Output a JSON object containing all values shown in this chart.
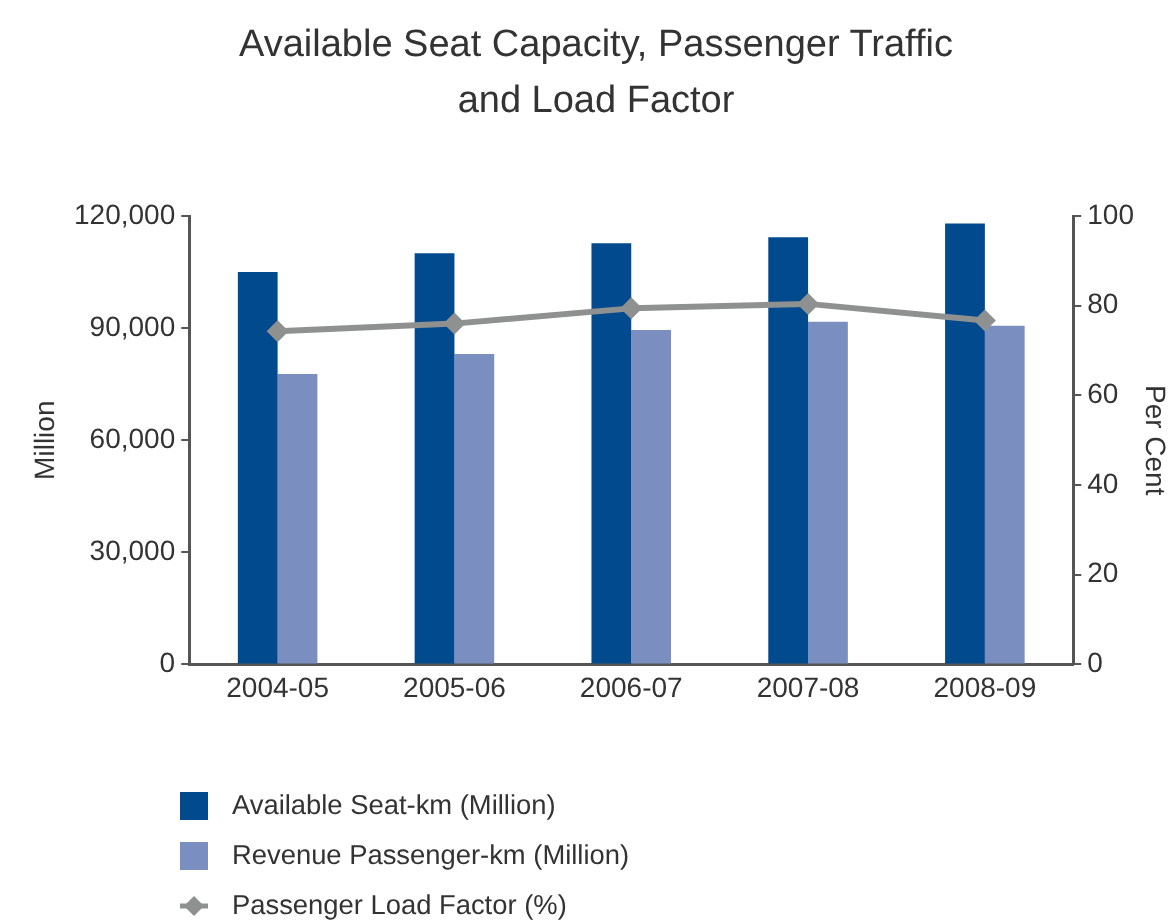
{
  "chart_data": {
    "type": "bar",
    "title": "Available Seat Capacity, Passenger Traffic and Load Factor",
    "categories": [
      "2004-05",
      "2005-06",
      "2006-07",
      "2007-08",
      "2008-09"
    ],
    "series": [
      {
        "name": "Available Seat-km (Million)",
        "color": "#004a8d",
        "values": [
          105000,
          110000,
          112700,
          114300,
          118000
        ]
      },
      {
        "name": "Revenue Passenger-km (Million)",
        "color": "#7a8fbf",
        "values": [
          77700,
          83100,
          89500,
          91700,
          90600
        ]
      },
      {
        "name": "Passenger Load Factor (%)",
        "type": "line",
        "axis": "y2",
        "color": "#8f9090",
        "values": [
          74.3,
          76.0,
          79.4,
          80.4,
          76.7
        ]
      }
    ],
    "ylabel": "Million",
    "y2label": "Per Cent",
    "ylim": [
      0,
      120000
    ],
    "yticks": [
      0,
      {
        "value": 30000,
        "label": "30,000"
      },
      {
        "value": 60000,
        "label": "60,000"
      },
      {
        "value": 90000,
        "label": "90,000"
      },
      {
        "value": 120000,
        "label": "120,000"
      }
    ],
    "y2lim": [
      0,
      100
    ],
    "y2ticks": [
      0,
      20,
      40,
      60,
      80,
      100
    ],
    "marker": "diamond",
    "legend": "bottom left"
  }
}
